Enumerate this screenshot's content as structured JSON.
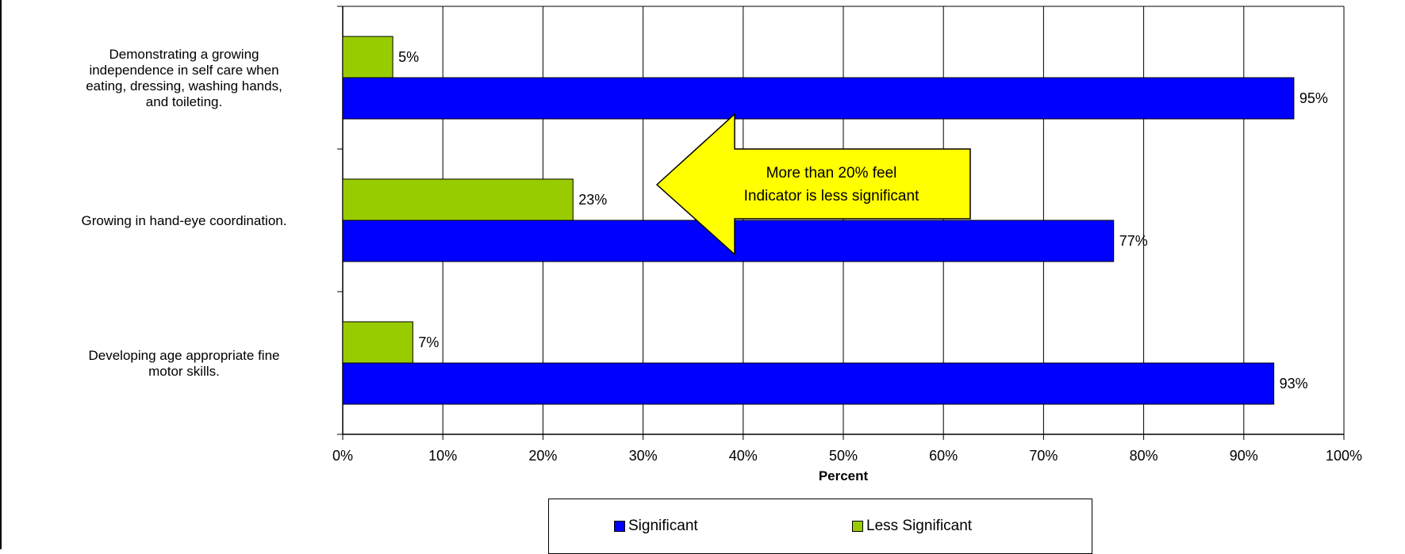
{
  "chart_data": {
    "type": "bar",
    "orientation": "horizontal",
    "categories": [
      "Demonstrating a growing independence in self care when eating, dressing, washing hands, and toileting.",
      "Growing in hand-eye coordination.",
      "Developing age appropriate fine motor skills."
    ],
    "category_label_lines": [
      [
        "Demonstrating a growing",
        "independence in self care when",
        "eating, dressing, washing hands,",
        "and toileting."
      ],
      [
        "Growing in hand-eye coordination."
      ],
      [
        "Developing age appropriate fine",
        "motor skills."
      ]
    ],
    "series": [
      {
        "name": "Significant",
        "color": "#0000ff",
        "values": [
          95,
          77,
          93
        ],
        "labels": [
          "95%",
          "77%",
          "93%"
        ]
      },
      {
        "name": "Less Significant",
        "color": "#99cc00",
        "values": [
          5,
          23,
          7
        ],
        "labels": [
          "5%",
          "23%",
          "7%"
        ]
      }
    ],
    "xlabel": "Percent",
    "xlim": [
      0,
      100
    ],
    "x_ticks": [
      "0%",
      "10%",
      "20%",
      "30%",
      "40%",
      "50%",
      "60%",
      "70%",
      "80%",
      "90%",
      "100%"
    ],
    "grid": true,
    "legend_position": "bottom",
    "annotation": {
      "lines": [
        "More than 20% feel",
        "Indicator is less significant"
      ],
      "fill_color": "#ffff00",
      "points_to": "Growing in hand-eye coordination."
    }
  }
}
